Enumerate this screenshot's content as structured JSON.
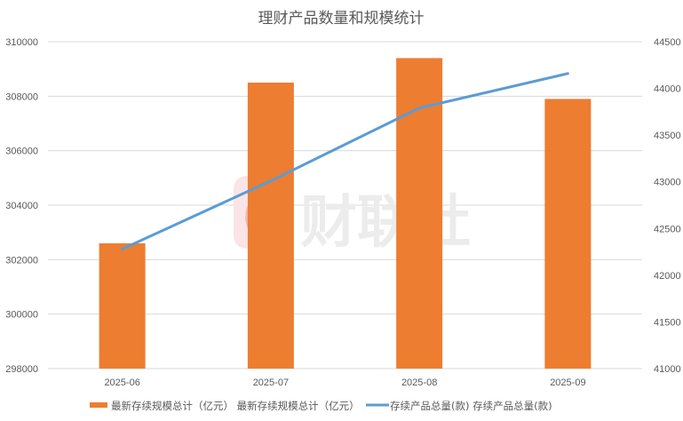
{
  "chart_data": {
    "type": "bar+line",
    "title": "理财产品数量和规模统计",
    "categories": [
      "2025-06",
      "2025-07",
      "2025-08",
      "2025-09"
    ],
    "series": [
      {
        "name": "最新存续规模总计（亿元）",
        "legend_label": "最新存续规模总计（亿元） 最新存续规模总计（亿元）",
        "type": "bar",
        "axis": "left",
        "color": "#ED7D31",
        "values": [
          302600,
          308500,
          309400,
          307900
        ]
      },
      {
        "name": "存续产品总量(款)",
        "legend_label": "存续产品总量(款) 存续产品总量(款)",
        "type": "line",
        "axis": "right",
        "color": "#5B9BD5",
        "values": [
          42280,
          43010,
          43790,
          44160
        ]
      }
    ],
    "left_axis": {
      "ylim": [
        298000,
        310000
      ],
      "ticks": [
        "310000",
        "308000",
        "306000",
        "304000",
        "302000",
        "300000",
        "298000"
      ]
    },
    "right_axis": {
      "ylim": [
        41000,
        44500
      ],
      "ticks": [
        "44500",
        "44000",
        "43500",
        "43000",
        "42500",
        "42000",
        "41500",
        "41000"
      ]
    },
    "xlabel": "",
    "ylabel": "",
    "grid": true,
    "legend_position": "bottom"
  },
  "watermark": {
    "logo_letter": "C",
    "text": "财联社"
  }
}
